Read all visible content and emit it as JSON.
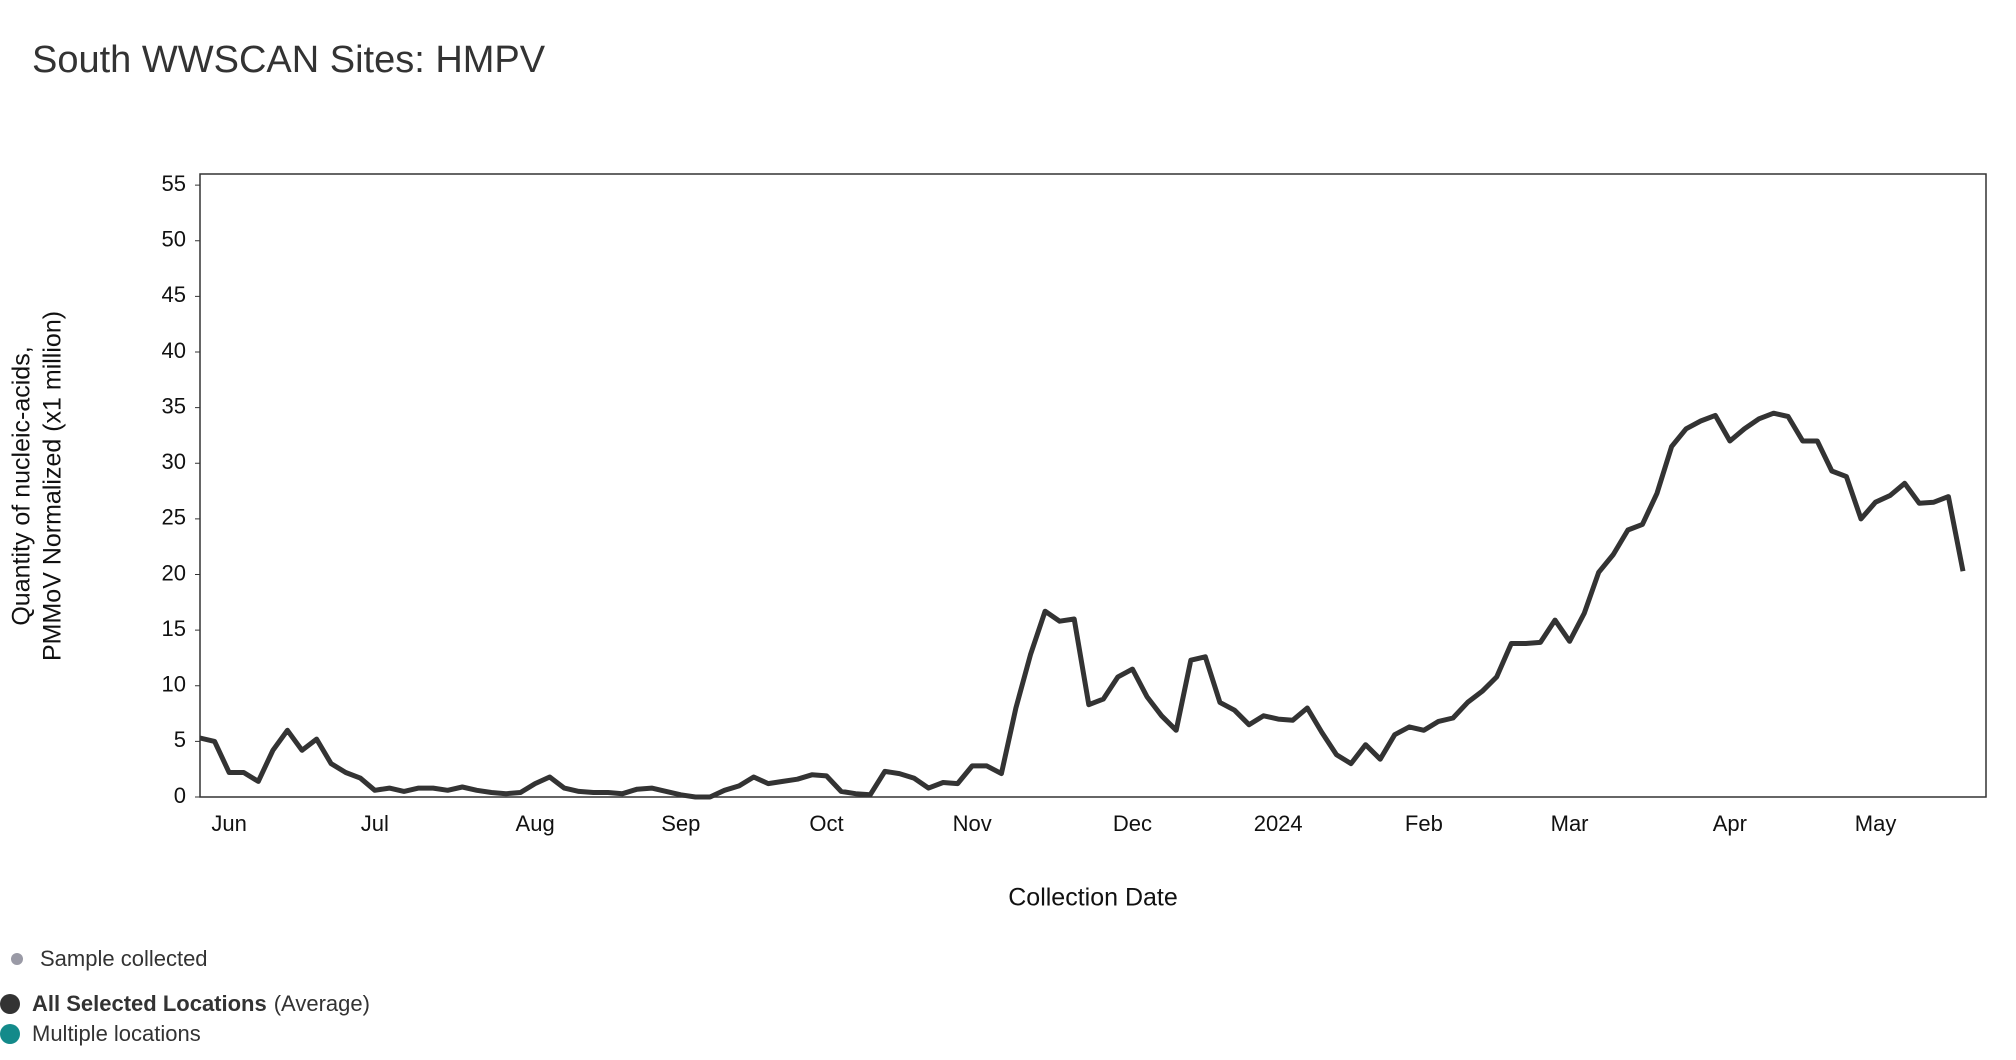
{
  "chart_data": {
    "type": "line",
    "title": "South WWSCAN Sites: HMPV",
    "xlabel": "Collection Date",
    "ylabel": [
      "Quantity of nucleic-acids,",
      "PMMoV Normalized (x1 million)"
    ],
    "categories": [
      null,
      null,
      "Jun",
      null,
      null,
      null,
      null,
      null,
      null,
      null,
      null,
      null,
      "Jul",
      null,
      null,
      null,
      null,
      null,
      null,
      null,
      null,
      null,
      null,
      "Aug",
      null,
      null,
      null,
      null,
      null,
      null,
      null,
      null,
      null,
      "Sep",
      null,
      null,
      null,
      null,
      null,
      null,
      null,
      null,
      null,
      "Oct",
      null,
      null,
      null,
      null,
      null,
      null,
      null,
      null,
      null,
      "Nov",
      null,
      null,
      null,
      null,
      null,
      null,
      null,
      null,
      null,
      null,
      "Dec",
      null,
      null,
      null,
      null,
      null,
      null,
      null,
      null,
      null,
      "2024",
      null,
      null,
      null,
      null,
      null,
      null,
      null,
      null,
      null,
      "Feb",
      null,
      null,
      null,
      null,
      null,
      null,
      null,
      null,
      null,
      "Mar",
      null,
      null,
      null,
      null,
      null,
      null,
      null,
      null,
      null,
      null,
      "Apr",
      null,
      null,
      null,
      null,
      null,
      null,
      null,
      null,
      null,
      "May",
      null,
      null,
      null,
      null,
      null,
      null
    ],
    "series": [
      {
        "name": "All Selected Locations",
        "name_suffix": "(Average)",
        "color": "#333333",
        "values": [
          5.3,
          5.0,
          2.2,
          2.2,
          1.4,
          4.2,
          6.0,
          4.2,
          5.2,
          3.0,
          2.2,
          1.7,
          0.6,
          0.8,
          0.5,
          0.8,
          0.8,
          0.6,
          0.9,
          0.6,
          0.4,
          0.3,
          0.4,
          1.2,
          1.8,
          0.8,
          0.5,
          0.4,
          0.4,
          0.3,
          0.7,
          0.8,
          0.5,
          0.2,
          0,
          0,
          0.6,
          1.0,
          1.8,
          1.2,
          1.4,
          1.6,
          2.0,
          1.9,
          0.5,
          0.3,
          0.2,
          2.3,
          2.1,
          1.7,
          0.8,
          1.3,
          1.2,
          2.8,
          2.8,
          2.1,
          8.0,
          12.8,
          16.7,
          15.8,
          16.0,
          8.3,
          8.8,
          10.8,
          11.5,
          9.0,
          7.3,
          6.0,
          12.3,
          12.6,
          8.5,
          7.8,
          6.5,
          7.3,
          7.0,
          6.9,
          8.0,
          5.8,
          3.8,
          3.0,
          4.7,
          3.4,
          5.6,
          6.3,
          6.0,
          6.8,
          7.1,
          8.5,
          9.5,
          10.8,
          13.8,
          13.8,
          13.9,
          15.9,
          14.0,
          16.5,
          20.2,
          21.8,
          24.0,
          24.5,
          27.3,
          31.5,
          33.1,
          33.8,
          34.3,
          32.0,
          33.1,
          34.0,
          34.5,
          34.2,
          32.0,
          32.0,
          29.3,
          28.8,
          25.0,
          26.5,
          27.1,
          28.2,
          26.4,
          26.5,
          27.0,
          20.3
        ]
      }
    ],
    "legend_items": [
      {
        "name": "Sample collected",
        "color": "#9a9aa6"
      },
      {
        "name": "Multiple locations",
        "color": "#138a8a"
      }
    ],
    "ylim": [
      0,
      56
    ],
    "yticks": [
      0,
      5,
      10,
      15,
      20,
      25,
      30,
      35,
      40,
      45,
      50,
      55
    ]
  }
}
